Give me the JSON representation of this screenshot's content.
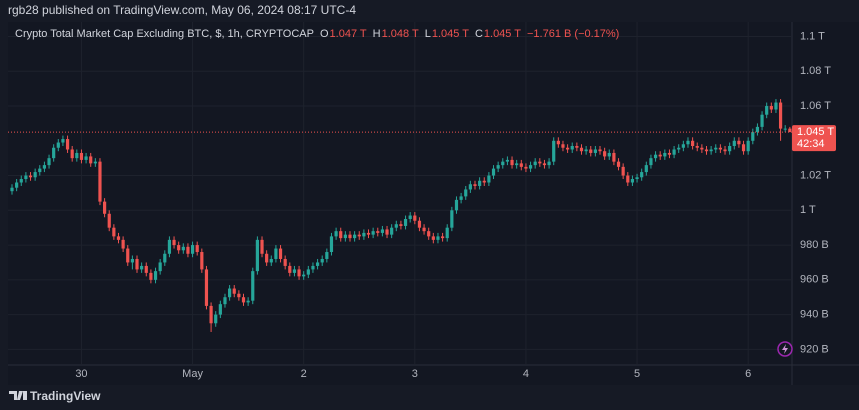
{
  "chart_data": {
    "type": "candlestick",
    "publisher": "rgb28 published on TradingView.com, May 06, 2024 08:17 UTC-4",
    "title": "Crypto Total Market Cap Excluding BTC, $, 1h, CRYPTOCAP",
    "legend_items": [
      {
        "key": "O",
        "value": "1.047 T"
      },
      {
        "key": "H",
        "value": "1.048 T"
      },
      {
        "key": "L",
        "value": "1.045 T"
      },
      {
        "key": "C",
        "value": "1.045 T"
      }
    ],
    "change": "−1.761 B (−0.17%)",
    "brand": "TradingView",
    "up_color": "#26a69a",
    "down_color": "#ef5350",
    "grid": true,
    "ylim": [
      911,
      1121
    ],
    "yticks": [
      {
        "value": 1100,
        "label": "1.1 T"
      },
      {
        "value": 1080,
        "label": "1.08 T"
      },
      {
        "value": 1060,
        "label": "1.06 T"
      },
      {
        "value": 1020,
        "label": "1.02 T"
      },
      {
        "value": 1000,
        "label": "1 T"
      },
      {
        "value": 980,
        "label": "980 B"
      },
      {
        "value": 960,
        "label": "960 B"
      },
      {
        "value": 940,
        "label": "940 B"
      },
      {
        "value": 920,
        "label": "920 B"
      }
    ],
    "last_price": {
      "value": 1045,
      "label": "1.045 T"
    },
    "countdown": "42:34",
    "categories": [
      null,
      null,
      null,
      null,
      null,
      null,
      null,
      null,
      null,
      null,
      null,
      null,
      null,
      null,
      null,
      "30",
      null,
      null,
      null,
      null,
      null,
      null,
      null,
      null,
      null,
      null,
      null,
      null,
      null,
      null,
      null,
      null,
      null,
      null,
      null,
      null,
      null,
      null,
      null,
      "May",
      null,
      null,
      null,
      null,
      null,
      null,
      null,
      null,
      null,
      null,
      null,
      null,
      null,
      null,
      null,
      null,
      null,
      null,
      null,
      null,
      null,
      null,
      null,
      "2",
      null,
      null,
      null,
      null,
      null,
      null,
      null,
      null,
      null,
      null,
      null,
      null,
      null,
      null,
      null,
      null,
      null,
      null,
      null,
      null,
      null,
      null,
      null,
      "3",
      null,
      null,
      null,
      null,
      null,
      null,
      null,
      null,
      null,
      null,
      null,
      null,
      null,
      null,
      null,
      null,
      null,
      null,
      null,
      null,
      null,
      null,
      null,
      "4",
      null,
      null,
      null,
      null,
      null,
      null,
      null,
      null,
      null,
      null,
      null,
      null,
      null,
      null,
      null,
      null,
      null,
      null,
      null,
      null,
      null,
      null,
      null,
      "5",
      null,
      null,
      null,
      null,
      null,
      null,
      null,
      null,
      null,
      null,
      null,
      null,
      null,
      null,
      null,
      null,
      null,
      null,
      null,
      null,
      null,
      null,
      null,
      "6",
      null,
      null,
      null,
      null,
      null,
      null,
      null,
      null,
      null
    ],
    "ohlc": [
      [
        1011,
        1015,
        1009,
        1013
      ],
      [
        1013,
        1018,
        1011,
        1016
      ],
      [
        1016,
        1020,
        1014,
        1018
      ],
      [
        1018,
        1022,
        1016,
        1020
      ],
      [
        1020,
        1022,
        1017,
        1019
      ],
      [
        1019,
        1024,
        1017,
        1022
      ],
      [
        1022,
        1026,
        1020,
        1024
      ],
      [
        1024,
        1028,
        1022,
        1026
      ],
      [
        1026,
        1032,
        1024,
        1030
      ],
      [
        1030,
        1038,
        1028,
        1036
      ],
      [
        1036,
        1041,
        1034,
        1039
      ],
      [
        1039,
        1043,
        1037,
        1041
      ],
      [
        1041,
        1043,
        1033,
        1035
      ],
      [
        1035,
        1037,
        1028,
        1030
      ],
      [
        1030,
        1035,
        1028,
        1033
      ],
      [
        1033,
        1035,
        1027,
        1029
      ],
      [
        1029,
        1033,
        1027,
        1031
      ],
      [
        1031,
        1033,
        1025,
        1027
      ],
      [
        1027,
        1030,
        1025,
        1028
      ],
      [
        1028,
        1030,
        1003,
        1005
      ],
      [
        1005,
        1007,
        996,
        998
      ],
      [
        998,
        1000,
        988,
        990
      ],
      [
        990,
        992,
        983,
        985
      ],
      [
        985,
        987,
        981,
        983
      ],
      [
        983,
        985,
        976,
        978
      ],
      [
        978,
        980,
        968,
        970
      ],
      [
        970,
        974,
        966,
        972
      ],
      [
        972,
        974,
        964,
        966
      ],
      [
        966,
        970,
        964,
        968
      ],
      [
        968,
        970,
        962,
        964
      ],
      [
        964,
        966,
        958,
        960
      ],
      [
        960,
        967,
        958,
        965
      ],
      [
        965,
        972,
        963,
        970
      ],
      [
        970,
        977,
        968,
        975
      ],
      [
        975,
        985,
        973,
        983
      ],
      [
        983,
        985,
        978,
        980
      ],
      [
        980,
        982,
        975,
        977
      ],
      [
        977,
        981,
        975,
        979
      ],
      [
        979,
        981,
        973,
        975
      ],
      [
        975,
        982,
        973,
        980
      ],
      [
        980,
        982,
        974,
        976
      ],
      [
        976,
        978,
        964,
        966
      ],
      [
        966,
        968,
        943,
        945
      ],
      [
        945,
        947,
        930,
        935
      ],
      [
        935,
        942,
        933,
        940
      ],
      [
        940,
        948,
        938,
        946
      ],
      [
        946,
        952,
        944,
        950
      ],
      [
        950,
        957,
        948,
        955
      ],
      [
        955,
        957,
        950,
        952
      ],
      [
        952,
        954,
        948,
        950
      ],
      [
        950,
        952,
        945,
        947
      ],
      [
        947,
        950,
        945,
        948
      ],
      [
        948,
        967,
        946,
        965
      ],
      [
        965,
        985,
        963,
        983
      ],
      [
        983,
        985,
        973,
        975
      ],
      [
        975,
        977,
        968,
        970
      ],
      [
        970,
        974,
        968,
        972
      ],
      [
        972,
        980,
        970,
        978
      ],
      [
        978,
        980,
        970,
        972
      ],
      [
        972,
        974,
        966,
        968
      ],
      [
        968,
        970,
        962,
        964
      ],
      [
        964,
        968,
        962,
        966
      ],
      [
        966,
        968,
        960,
        962
      ],
      [
        962,
        965,
        960,
        963
      ],
      [
        963,
        968,
        961,
        966
      ],
      [
        966,
        970,
        964,
        968
      ],
      [
        968,
        972,
        966,
        970
      ],
      [
        970,
        974,
        968,
        972
      ],
      [
        972,
        978,
        970,
        976
      ],
      [
        976,
        987,
        974,
        985
      ],
      [
        985,
        990,
        983,
        988
      ],
      [
        988,
        990,
        982,
        984
      ],
      [
        984,
        988,
        982,
        986
      ],
      [
        986,
        988,
        982,
        984
      ],
      [
        984,
        988,
        982,
        986
      ],
      [
        986,
        988,
        983,
        985
      ],
      [
        985,
        989,
        983,
        987
      ],
      [
        987,
        989,
        984,
        986
      ],
      [
        986,
        990,
        984,
        988
      ],
      [
        988,
        990,
        985,
        987
      ],
      [
        987,
        991,
        985,
        989
      ],
      [
        989,
        991,
        984,
        986
      ],
      [
        986,
        992,
        984,
        990
      ],
      [
        990,
        994,
        988,
        992
      ],
      [
        992,
        994,
        989,
        991
      ],
      [
        991,
        997,
        989,
        995
      ],
      [
        995,
        999,
        993,
        997
      ],
      [
        997,
        999,
        992,
        994
      ],
      [
        994,
        996,
        988,
        990
      ],
      [
        990,
        992,
        986,
        988
      ],
      [
        988,
        990,
        983,
        985
      ],
      [
        985,
        987,
        981,
        983
      ],
      [
        983,
        987,
        981,
        985
      ],
      [
        985,
        987,
        982,
        984
      ],
      [
        984,
        992,
        982,
        990
      ],
      [
        990,
        1002,
        988,
        1000
      ],
      [
        1000,
        1008,
        998,
        1006
      ],
      [
        1006,
        1010,
        1004,
        1008
      ],
      [
        1008,
        1014,
        1006,
        1012
      ],
      [
        1012,
        1017,
        1010,
        1015
      ],
      [
        1015,
        1017,
        1012,
        1014
      ],
      [
        1014,
        1019,
        1012,
        1017
      ],
      [
        1017,
        1019,
        1014,
        1016
      ],
      [
        1016,
        1022,
        1014,
        1020
      ],
      [
        1020,
        1026,
        1018,
        1024
      ],
      [
        1024,
        1028,
        1022,
        1026
      ],
      [
        1026,
        1030,
        1024,
        1028
      ],
      [
        1028,
        1031,
        1026,
        1029
      ],
      [
        1029,
        1031,
        1024,
        1026
      ],
      [
        1026,
        1029,
        1024,
        1027
      ],
      [
        1027,
        1029,
        1023,
        1025
      ],
      [
        1025,
        1027,
        1022,
        1024
      ],
      [
        1024,
        1028,
        1022,
        1026
      ],
      [
        1026,
        1030,
        1024,
        1028
      ],
      [
        1028,
        1030,
        1025,
        1027
      ],
      [
        1027,
        1029,
        1024,
        1026
      ],
      [
        1026,
        1030,
        1024,
        1028
      ],
      [
        1028,
        1042,
        1026,
        1040
      ],
      [
        1040,
        1042,
        1036,
        1038
      ],
      [
        1038,
        1040,
        1034,
        1036
      ],
      [
        1036,
        1038,
        1033,
        1035
      ],
      [
        1035,
        1039,
        1033,
        1037
      ],
      [
        1037,
        1039,
        1034,
        1036
      ],
      [
        1036,
        1038,
        1032,
        1034
      ],
      [
        1034,
        1037,
        1032,
        1035
      ],
      [
        1035,
        1037,
        1031,
        1033
      ],
      [
        1033,
        1037,
        1031,
        1035
      ],
      [
        1035,
        1037,
        1032,
        1034
      ],
      [
        1034,
        1036,
        1029,
        1031
      ],
      [
        1031,
        1035,
        1029,
        1033
      ],
      [
        1033,
        1035,
        1026,
        1028
      ],
      [
        1028,
        1030,
        1023,
        1025
      ],
      [
        1025,
        1027,
        1018,
        1020
      ],
      [
        1020,
        1022,
        1014,
        1016
      ],
      [
        1016,
        1020,
        1014,
        1018
      ],
      [
        1018,
        1021,
        1016,
        1019
      ],
      [
        1019,
        1024,
        1017,
        1022
      ],
      [
        1022,
        1028,
        1020,
        1026
      ],
      [
        1026,
        1032,
        1024,
        1030
      ],
      [
        1030,
        1034,
        1028,
        1032
      ],
      [
        1032,
        1034,
        1029,
        1031
      ],
      [
        1031,
        1035,
        1029,
        1033
      ],
      [
        1033,
        1035,
        1030,
        1032
      ],
      [
        1032,
        1037,
        1030,
        1035
      ],
      [
        1035,
        1038,
        1033,
        1036
      ],
      [
        1036,
        1040,
        1034,
        1038
      ],
      [
        1038,
        1042,
        1036,
        1040
      ],
      [
        1040,
        1042,
        1035,
        1037
      ],
      [
        1037,
        1039,
        1034,
        1036
      ],
      [
        1036,
        1038,
        1033,
        1035
      ],
      [
        1035,
        1037,
        1032,
        1034
      ],
      [
        1034,
        1037,
        1032,
        1035
      ],
      [
        1035,
        1038,
        1033,
        1036
      ],
      [
        1036,
        1038,
        1033,
        1035
      ],
      [
        1035,
        1037,
        1032,
        1034
      ],
      [
        1034,
        1039,
        1032,
        1037
      ],
      [
        1037,
        1042,
        1035,
        1040
      ],
      [
        1040,
        1042,
        1036,
        1038
      ],
      [
        1038,
        1040,
        1032,
        1034
      ],
      [
        1034,
        1042,
        1032,
        1040
      ],
      [
        1040,
        1047,
        1038,
        1045
      ],
      [
        1045,
        1050,
        1043,
        1048
      ],
      [
        1048,
        1057,
        1046,
        1055
      ],
      [
        1055,
        1062,
        1053,
        1060
      ],
      [
        1060,
        1062,
        1056,
        1058
      ],
      [
        1058,
        1064,
        1056,
        1062
      ],
      [
        1062,
        1064,
        1040,
        1047
      ],
      [
        1047,
        1049,
        1045,
        1047
      ],
      [
        1047,
        1048,
        1045,
        1045
      ]
    ]
  }
}
